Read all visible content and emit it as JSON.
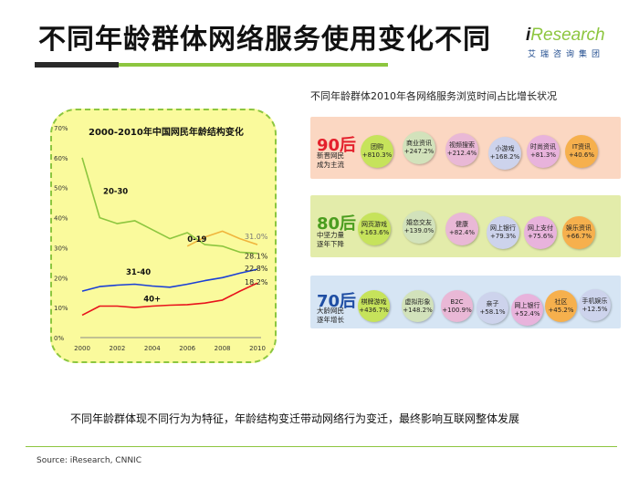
{
  "header": {
    "title": "不同年龄群体网络服务使用变化不同",
    "logo_main_i": "i",
    "logo_main_rest": "Research",
    "logo_sub": "艾瑞咨询集团"
  },
  "chart_data": {
    "type": "line",
    "title": "2000-2010年中国网民年龄结构变化",
    "x": [
      2000,
      2001,
      2002,
      2003,
      2004,
      2005,
      2006,
      2007,
      2008,
      2009,
      2010
    ],
    "xticks": [
      "2000",
      "2002",
      "2004",
      "2006",
      "2008",
      "2010"
    ],
    "yticks": [
      "0%",
      "10%",
      "20%",
      "30%",
      "40%",
      "50%",
      "60%",
      "70%"
    ],
    "ylim": [
      0,
      70
    ],
    "series": [
      {
        "name": "20-30",
        "color": "#8dc63f",
        "values": [
          60,
          40,
          38,
          39,
          36,
          33,
          35,
          31,
          30.5,
          28.5,
          28.1
        ],
        "end_label": "28.1%"
      },
      {
        "name": "0-19",
        "color": "#f0b43c",
        "values": [
          null,
          null,
          null,
          null,
          null,
          null,
          30.5,
          33.5,
          35.5,
          33,
          31.0
        ],
        "end_label": "31.0%"
      },
      {
        "name": "31-40",
        "color": "#1b3fd6",
        "values": [
          15.5,
          17,
          17.5,
          17.8,
          17.2,
          16.8,
          17.8,
          19,
          20,
          21.5,
          22.8
        ],
        "end_label": "22.8%"
      },
      {
        "name": "40+",
        "color": "#e8121c",
        "values": [
          7.5,
          10.5,
          10.5,
          10,
          10.5,
          10.8,
          11,
          11.5,
          12.5,
          15.5,
          18.2
        ],
        "end_label": "18.2%"
      }
    ]
  },
  "right_panel": {
    "title": "不同年龄群体2010年各网络服务浏览时间占比增长状况",
    "groups": [
      {
        "label": "90后",
        "label_color": "#e4202c",
        "desc": "新晋网民\n成为主流",
        "bubbles": [
          {
            "name": "团购",
            "value": "+810.3%",
            "color": "#c6e35b"
          },
          {
            "name": "商业资讯",
            "value": "+247.2%",
            "color": "#d2e2bb"
          },
          {
            "name": "视频搜索",
            "value": "+212.4%",
            "color": "#e9b8d6"
          },
          {
            "name": "小游戏",
            "value": "+168.2%",
            "color": "#cdd3ec"
          },
          {
            "name": "时尚资讯",
            "value": "+81.3%",
            "color": "#e8b3dc"
          },
          {
            "name": "IT资讯",
            "value": "+40.6%",
            "color": "#f6b04d"
          }
        ]
      },
      {
        "label": "80后",
        "label_color": "#4a9d1f",
        "desc": "中坚力量\n逐年下降",
        "bubbles": [
          {
            "name": "网页游戏",
            "value": "+163.6%",
            "color": "#c6e35b"
          },
          {
            "name": "婚恋交友",
            "value": "+139.0%",
            "color": "#d2e2bb"
          },
          {
            "name": "健康",
            "value": "+82.4%",
            "color": "#e9b8d6"
          },
          {
            "name": "网上银行",
            "value": "+79.3%",
            "color": "#cdd3ec"
          },
          {
            "name": "网上支付",
            "value": "+75.6%",
            "color": "#e8b3dc"
          },
          {
            "name": "娱乐资讯",
            "value": "+66.7%",
            "color": "#f6b04d"
          }
        ]
      },
      {
        "label": "70后",
        "label_color": "#1f4ea3",
        "desc": "大龄网民\n逐年增长",
        "bubbles": [
          {
            "name": "棋牌游戏",
            "value": "+436.7%",
            "color": "#c6e35b"
          },
          {
            "name": "虚拟形象",
            "value": "+148.2%",
            "color": "#d2e2bb"
          },
          {
            "name": "B2C",
            "value": "+100.9%",
            "color": "#e9b8d6"
          },
          {
            "name": "亲子",
            "value": "+58.1%",
            "color": "#cdd3ec"
          },
          {
            "name": "网上银行",
            "value": "+52.4%",
            "color": "#e8b3dc"
          },
          {
            "name": "社区",
            "value": "+45.2%",
            "color": "#f6b04d"
          },
          {
            "name": "手机娱乐",
            "value": "+12.5%",
            "color": "#cdd3ec"
          }
        ]
      }
    ]
  },
  "footer": {
    "conclusion": "不同年龄群体现不同行为为特征，年龄结构变迁带动网络行为变迁，最终影响互联网整体发展",
    "source": "Source: iResearch, CNNIC"
  }
}
